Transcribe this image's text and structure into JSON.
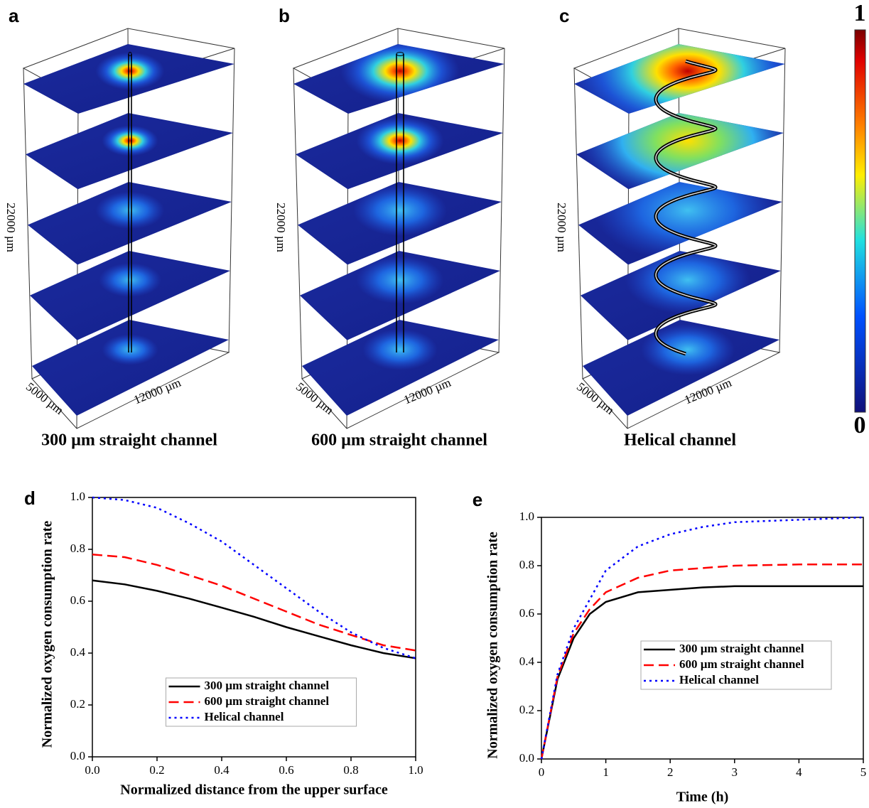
{
  "panels": [
    {
      "letter": "a",
      "caption": "300 µm straight channel",
      "height_label": "22000 µm",
      "depth_label": "5000 µm",
      "width_label": "12000 µm"
    },
    {
      "letter": "b",
      "caption": "600 µm straight channel",
      "height_label": "22000 µm",
      "depth_label": "5000 µm",
      "width_label": "12000 µm"
    },
    {
      "letter": "c",
      "caption": "Helical channel",
      "height_label": "22000 µm",
      "depth_label": "5000 µm",
      "width_label": "12000 µm"
    }
  ],
  "colorbar": {
    "ticks": [
      0,
      1
    ]
  },
  "chart_data": [
    {
      "type": "line",
      "panel": "d",
      "xlabel": "Normalized distance from the upper surface",
      "ylabel": "Normalized oxygen consumption rate",
      "x": [
        0,
        0.1,
        0.2,
        0.3,
        0.4,
        0.5,
        0.6,
        0.7,
        0.8,
        0.9,
        1.0
      ],
      "series": [
        {
          "name": "300 µm straight channel",
          "color": "#000000",
          "line_style": "solid",
          "values": [
            0.68,
            0.665,
            0.64,
            0.61,
            0.575,
            0.54,
            0.5,
            0.465,
            0.43,
            0.4,
            0.38
          ]
        },
        {
          "name": "600 µm straight channel",
          "color": "#ff0000",
          "line_style": "dashed",
          "values": [
            0.78,
            0.77,
            0.74,
            0.7,
            0.66,
            0.61,
            0.56,
            0.51,
            0.47,
            0.43,
            0.41
          ]
        },
        {
          "name": "Helical channel",
          "color": "#0000ff",
          "line_style": "dotted",
          "values": [
            1.0,
            0.99,
            0.96,
            0.9,
            0.83,
            0.74,
            0.65,
            0.56,
            0.48,
            0.42,
            0.38
          ]
        }
      ],
      "xlim": [
        0,
        1
      ],
      "ylim": [
        0,
        1
      ],
      "xticks": [
        {
          "value": 0,
          "label": "0.0"
        },
        0.2,
        0.4,
        0.6,
        0.8,
        {
          "value": 1,
          "label": "1.0"
        }
      ],
      "yticks": [
        {
          "value": 0,
          "label": "0.0"
        },
        0.2,
        0.4,
        0.6,
        0.8,
        {
          "value": 1,
          "label": "1.0"
        }
      ],
      "legend": "lower center"
    },
    {
      "type": "line",
      "panel": "e",
      "xlabel": "Time (h)",
      "ylabel": "Normalized oxygen consumption rate",
      "x": [
        0,
        0.25,
        0.5,
        0.75,
        1,
        1.5,
        2,
        2.5,
        3,
        4,
        5
      ],
      "series": [
        {
          "name": "300 µm straight channel",
          "color": "#000000",
          "line_style": "solid",
          "values": [
            0,
            0.33,
            0.5,
            0.6,
            0.65,
            0.69,
            0.7,
            0.71,
            0.715,
            0.715,
            0.715
          ]
        },
        {
          "name": "600 µm straight channel",
          "color": "#ff0000",
          "line_style": "dashed",
          "values": [
            0,
            0.34,
            0.52,
            0.62,
            0.69,
            0.75,
            0.78,
            0.79,
            0.8,
            0.805,
            0.805
          ]
        },
        {
          "name": "Helical channel",
          "color": "#0000ff",
          "line_style": "dotted",
          "values": [
            0,
            0.35,
            0.54,
            0.66,
            0.78,
            0.88,
            0.93,
            0.96,
            0.98,
            0.99,
            1.0
          ]
        }
      ],
      "xlim": [
        0,
        5
      ],
      "ylim": [
        0,
        1
      ],
      "xticks": [
        0,
        1,
        2,
        3,
        4,
        5
      ],
      "yticks": [
        {
          "value": 0,
          "label": "0.0"
        },
        0.2,
        0.4,
        0.6,
        0.8,
        {
          "value": 1,
          "label": "1.0"
        }
      ],
      "legend": "center right"
    }
  ]
}
